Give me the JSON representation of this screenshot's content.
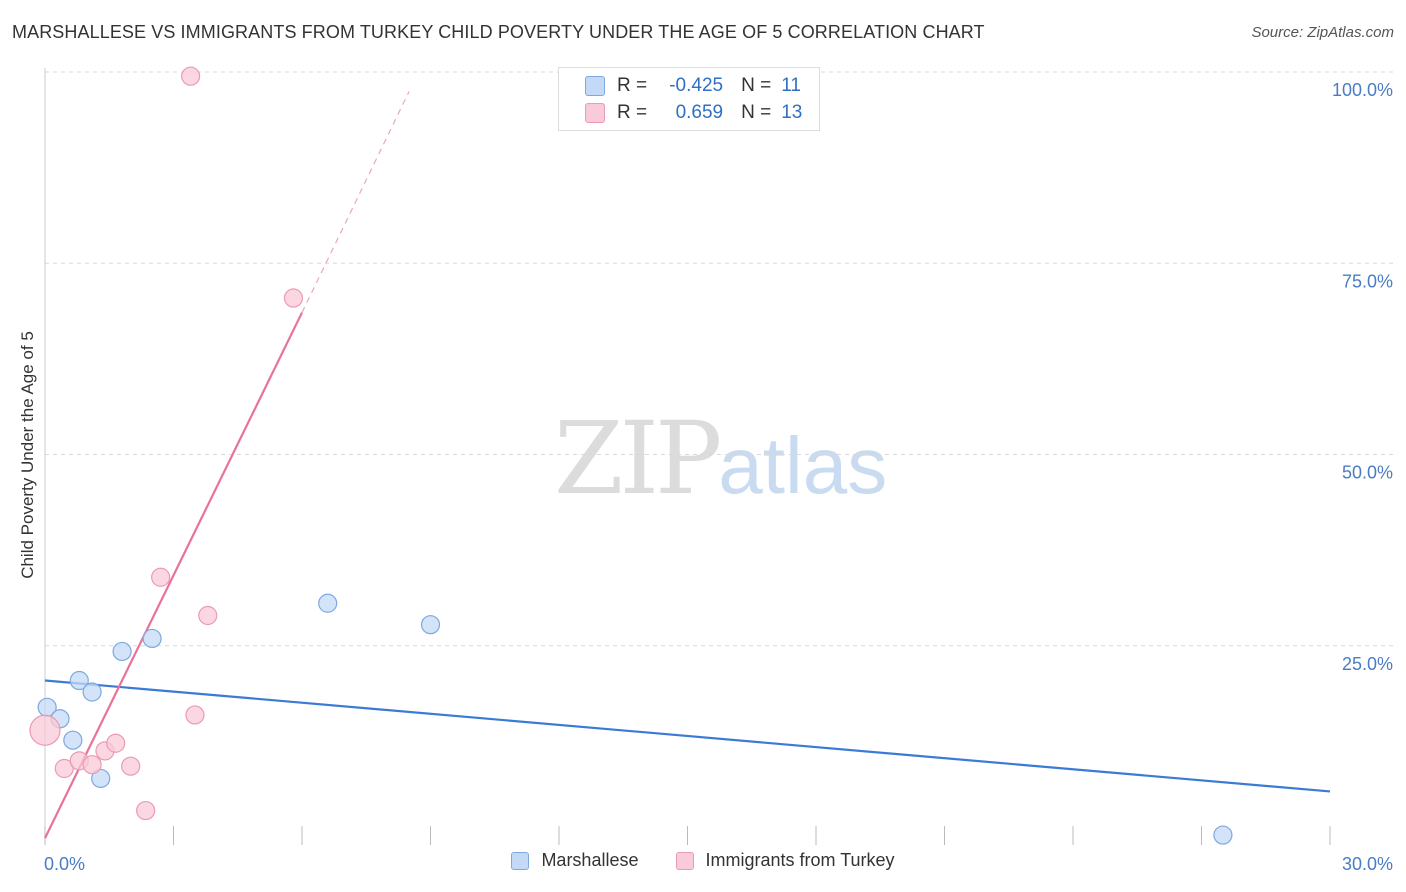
{
  "title": "MARSHALLESE VS IMMIGRANTS FROM TURKEY CHILD POVERTY UNDER THE AGE OF 5 CORRELATION CHART",
  "source": "Source: ZipAtlas.com",
  "watermark": {
    "zip": "ZIP",
    "atlas": "atlas"
  },
  "colors": {
    "marshallese": "#3a7bd5",
    "turkey": "#e8729a",
    "marshallese_fill": "#c4d9f5",
    "turkey_fill": "#f9cad8",
    "axis_text": "#4a7cc4"
  },
  "correlation_box": [
    {
      "r_label": "R =",
      "r_value": "-0.425",
      "n_label": "N =",
      "n_value": "11"
    },
    {
      "r_label": "R =",
      "r_value": "0.659",
      "n_label": "N =",
      "n_value": "13"
    }
  ],
  "chart_data": {
    "type": "scatter",
    "title": "MARSHALLESE VS IMMIGRANTS FROM TURKEY CHILD POVERTY UNDER THE AGE OF 5 CORRELATION CHART",
    "xlabel": "",
    "ylabel": "Child Poverty Under the Age of 5",
    "xlim": [
      0,
      30
    ],
    "ylim": [
      0,
      100
    ],
    "x_tick_labels": [
      "0.0%",
      "30.0%"
    ],
    "y_tick_values": [
      25,
      50,
      75,
      100
    ],
    "y_tick_labels": [
      "25.0%",
      "50.0%",
      "75.0%",
      "100.0%"
    ],
    "grid": true,
    "legend_position": "bottom-center",
    "series": [
      {
        "name": "Marshallese",
        "points": [
          {
            "x": 0.05,
            "y": 18.0
          },
          {
            "x": 0.35,
            "y": 16.5
          },
          {
            "x": 0.65,
            "y": 13.7
          },
          {
            "x": 0.8,
            "y": 21.5
          },
          {
            "x": 1.1,
            "y": 20.0
          },
          {
            "x": 1.3,
            "y": 8.7
          },
          {
            "x": 1.8,
            "y": 25.3
          },
          {
            "x": 2.5,
            "y": 27.0
          },
          {
            "x": 6.6,
            "y": 31.6
          },
          {
            "x": 9.0,
            "y": 28.8
          },
          {
            "x": 27.5,
            "y": 1.3
          }
        ],
        "trend": {
          "x0": 0,
          "y0": 21.5,
          "x1": 30,
          "y1": 7.0
        }
      },
      {
        "name": "Immigrants from Turkey",
        "points": [
          {
            "x": 0.0,
            "y": 15.0
          },
          {
            "x": 0.45,
            "y": 10.0
          },
          {
            "x": 0.8,
            "y": 11.0
          },
          {
            "x": 1.1,
            "y": 10.5
          },
          {
            "x": 1.4,
            "y": 12.3
          },
          {
            "x": 1.65,
            "y": 13.3
          },
          {
            "x": 2.0,
            "y": 10.3
          },
          {
            "x": 2.35,
            "y": 4.5
          },
          {
            "x": 2.7,
            "y": 35.0
          },
          {
            "x": 3.5,
            "y": 17.0
          },
          {
            "x": 3.8,
            "y": 30.0
          },
          {
            "x": 3.4,
            "y": 100.5
          },
          {
            "x": 5.8,
            "y": 71.5
          }
        ],
        "trend": {
          "x0": 0,
          "y0": 0.9,
          "x1": 6.0,
          "y1": 69.6
        },
        "trend_dashed": {
          "x0": 6.0,
          "y0": 69.6,
          "x1": 8.5,
          "y1": 98.5
        }
      }
    ]
  },
  "legend": [
    {
      "label": "Marshallese"
    },
    {
      "label": "Immigrants from Turkey"
    }
  ]
}
